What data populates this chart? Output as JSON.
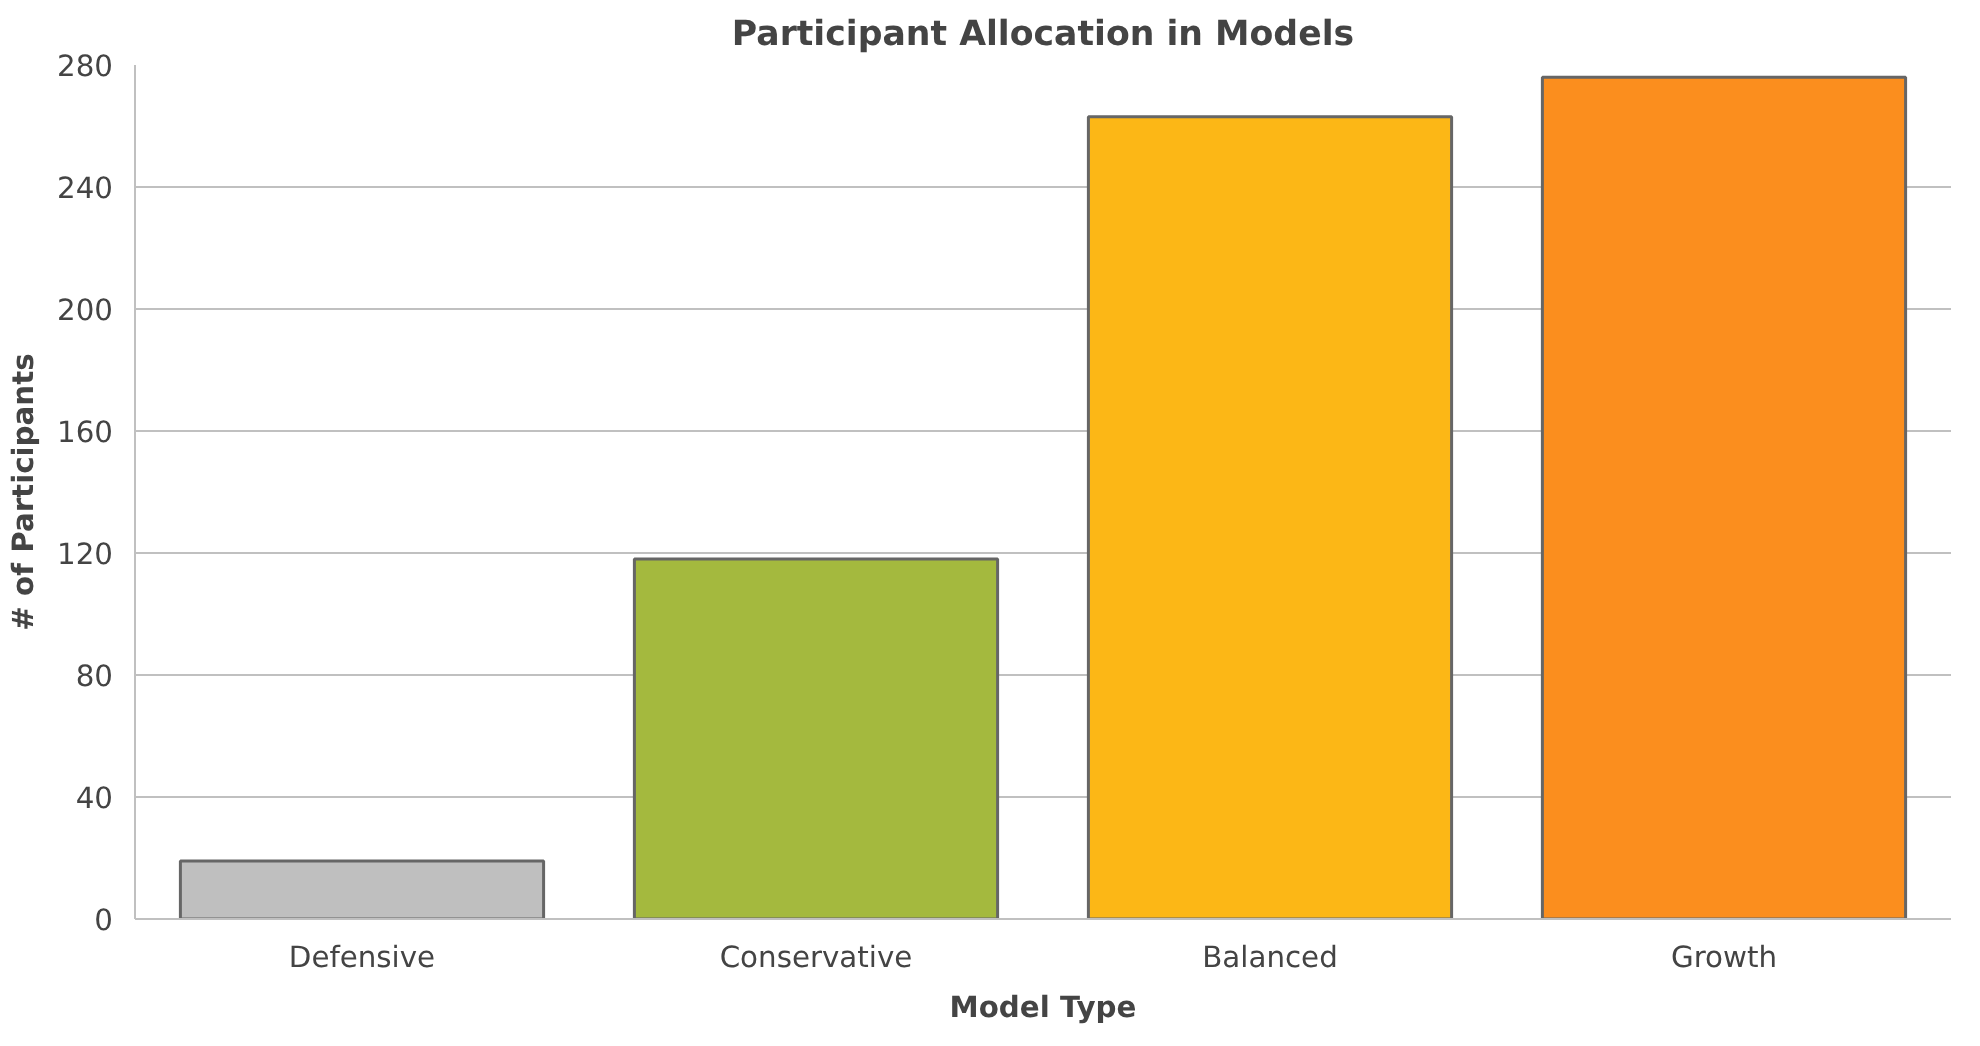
{
  "chart_data": {
    "type": "bar",
    "title": "Participant Allocation in Models",
    "xlabel": "Model Type",
    "ylabel": "# of Participants",
    "categories": [
      "Defensive",
      "Conservative",
      "Balanced",
      "Growth"
    ],
    "values": [
      19,
      118,
      263,
      276
    ],
    "colors": [
      "#bfbfbf",
      "#a4b93e",
      "#fcb716",
      "#fb8e1e"
    ],
    "ylim": [
      0,
      280
    ],
    "yticks": [
      0,
      40,
      80,
      120,
      160,
      200,
      240,
      280
    ],
    "grid": "y"
  }
}
